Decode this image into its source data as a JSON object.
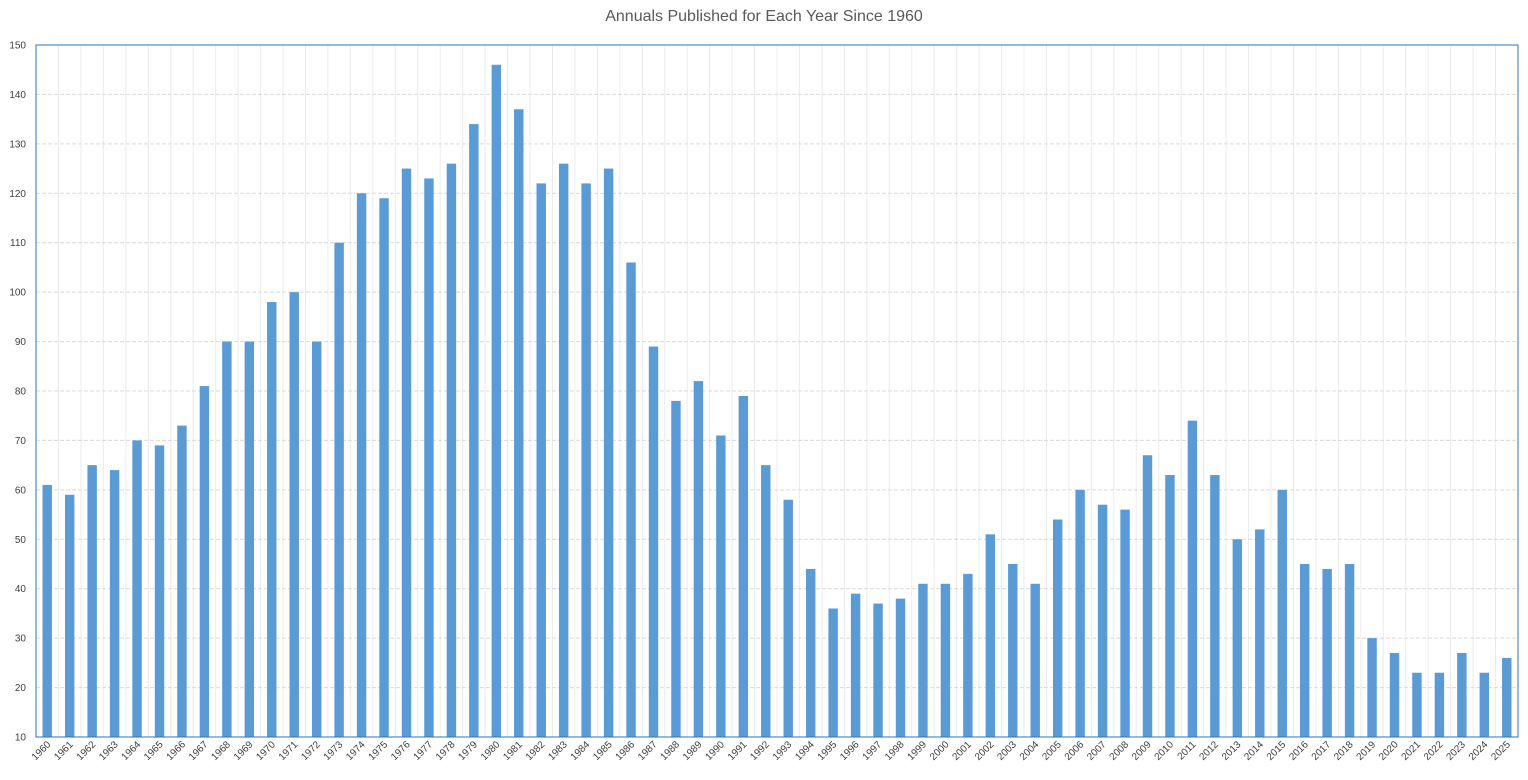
{
  "chart_data": {
    "type": "bar",
    "title": "Annuals Published for Each Year Since 1960",
    "xlabel": "",
    "ylabel": "",
    "ylim": [
      10,
      150
    ],
    "ytick_step": 10,
    "grid": true,
    "bar_color": "#5B9BD5",
    "categories": [
      "1960",
      "1961",
      "1962",
      "1963",
      "1964",
      "1965",
      "1966",
      "1967",
      "1968",
      "1969",
      "1970",
      "1971",
      "1972",
      "1973",
      "1974",
      "1975",
      "1976",
      "1977",
      "1978",
      "1979",
      "1980",
      "1981",
      "1982",
      "1983",
      "1984",
      "1985",
      "1986",
      "1987",
      "1988",
      "1989",
      "1990",
      "1991",
      "1992",
      "1993",
      "1994",
      "1995",
      "1996",
      "1997",
      "1998",
      "1999",
      "2000",
      "2001",
      "2002",
      "2003",
      "2004",
      "2005",
      "2006",
      "2007",
      "2008",
      "2009",
      "2010",
      "2011",
      "2012",
      "2013",
      "2014",
      "2015",
      "2016",
      "2017",
      "2018",
      "2019",
      "2020",
      "2021",
      "2022",
      "2023",
      "2024",
      "2025"
    ],
    "values": [
      61,
      59,
      65,
      64,
      70,
      69,
      73,
      81,
      90,
      90,
      98,
      100,
      90,
      110,
      120,
      119,
      125,
      123,
      126,
      134,
      146,
      137,
      122,
      126,
      122,
      125,
      106,
      89,
      78,
      82,
      71,
      79,
      65,
      58,
      44,
      36,
      39,
      37,
      38,
      41,
      41,
      43,
      51,
      45,
      41,
      54,
      60,
      57,
      56,
      67,
      63,
      74,
      63,
      50,
      52,
      60,
      45,
      44,
      45,
      30,
      27,
      23,
      23,
      27,
      23,
      26
    ]
  }
}
